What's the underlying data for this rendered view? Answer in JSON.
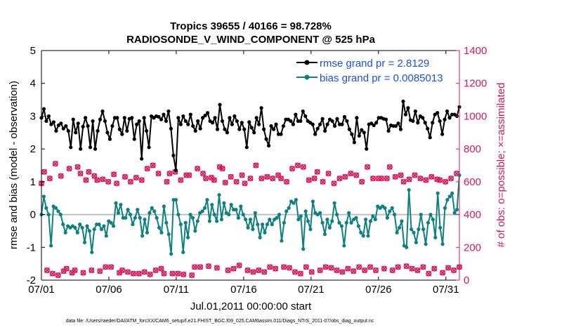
{
  "chart_data": {
    "type": "line",
    "title_line1": "Tropics 39655 / 40166 = 98.728%",
    "title_line2": "RADIOSONDE_V_WIND_COMPONENT @ 525 hPa",
    "xlabel": "Jul.01,2011 00:00:00 start",
    "ylabel_left": "rmse and bias (model - observation)",
    "ylabel_right": "# of obs: o=possible; ×=assimilated",
    "footer": "data file: /Users/raeder/DAI/ATM_forcXX/CAM6_setup/f.e21.FHIST_BGC.f09_025.CAM6assim.011/Diags_NTrS_2011-07/obs_diag_output.nc",
    "x_ticks": [
      "07/01",
      "07/06",
      "07/11",
      "07/16",
      "07/21",
      "07/26",
      "07/31"
    ],
    "x_tick_positions_days": [
      0,
      5,
      10,
      15,
      20,
      25,
      30
    ],
    "xlim_days": [
      0,
      31
    ],
    "ylim_left": [
      -2,
      5
    ],
    "y_ticks_left": [
      "-2",
      "-1",
      "0",
      "1",
      "2",
      "3",
      "4",
      "5"
    ],
    "ylim_right": [
      0,
      1400
    ],
    "y_ticks_right": [
      "0",
      "200",
      "400",
      "600",
      "800",
      "1000",
      "1200",
      "1400"
    ],
    "zero_line": 0,
    "colors": {
      "rmse": "#000000",
      "bias": "#0f8080",
      "obs": "#d6185a",
      "legend_text": "#1f4fe0",
      "zero_line": "#bfbfbf"
    },
    "series": [
      {
        "name": "rmse grand pr = 2.8129",
        "values": [
          2.95,
          3.22,
          2.85,
          3.0,
          2.75,
          2.82,
          2.55,
          2.72,
          2.78,
          2.62,
          2.7,
          2.55,
          2.05,
          2.9,
          2.5,
          2.78,
          2.0,
          2.68,
          2.95,
          2.7,
          2.05,
          2.85,
          2.0,
          2.55,
          2.9,
          3.15,
          2.85,
          2.5,
          2.3,
          2.7,
          2.95,
          2.95,
          2.6,
          2.45,
          2.95,
          2.55,
          2.92,
          2.95,
          2.3,
          2.75,
          2.85,
          1.7,
          2.95,
          2.55,
          2.05,
          3.0,
          2.95,
          3.0,
          2.98,
          2.9,
          3.05,
          2.85,
          3.15,
          2.62,
          1.8,
          1.35,
          2.95,
          2.75,
          3.0,
          2.85,
          2.75,
          3.05,
          2.7,
          2.55,
          2.85,
          2.62,
          2.95,
          3.02,
          3.1,
          2.85,
          2.8,
          2.95,
          2.6,
          3.35,
          2.85,
          2.6,
          2.5,
          2.95,
          2.75,
          3.0,
          2.85,
          2.6,
          2.8,
          2.6,
          2.05,
          2.82,
          2.65,
          2.5,
          2.95,
          2.75,
          3.25,
          2.6,
          2.3,
          2.1,
          2.7,
          2.6,
          2.75,
          2.45,
          2.45,
          2.7,
          2.9,
          2.9,
          2.85,
          2.75,
          3.05,
          2.85,
          2.85,
          3.15,
          3.0,
          2.85,
          2.8,
          2.75,
          2.45,
          2.62,
          2.75,
          2.92,
          2.55,
          2.75,
          2.9,
          2.85,
          2.7,
          2.92,
          2.75,
          2.75,
          2.98,
          2.85,
          2.6,
          2.45,
          2.2,
          2.95,
          2.4,
          2.58,
          2.5,
          2.0,
          2.75,
          2.78,
          2.72,
          2.8,
          2.95,
          2.95,
          2.92,
          2.9,
          2.55,
          2.72,
          2.7,
          2.7,
          2.78,
          2.6,
          3.45,
          3.05,
          3.25,
          2.88,
          2.85,
          3.15,
          2.8,
          3.0,
          2.95,
          2.8,
          2.62,
          2.35,
          2.8,
          3.05,
          3.1,
          2.85,
          2.45,
          2.9,
          3.15,
          2.95,
          3.05,
          3.05,
          3.0,
          3.28
        ]
      },
      {
        "name": "bias grand pr = 0.0085013",
        "values": [
          0.0,
          0.55,
          0.2,
          0.0,
          -0.95,
          0.25,
          0.2,
          0.1,
          0.0,
          -0.3,
          -0.55,
          -0.35,
          -0.4,
          -0.35,
          -0.4,
          -0.55,
          -0.3,
          -0.4,
          -0.85,
          -0.35,
          -0.5,
          -1.15,
          -0.45,
          -0.3,
          -0.3,
          -0.45,
          -0.35,
          -0.65,
          -0.2,
          -0.25,
          -0.35,
          0.35,
          0.05,
          0.3,
          -0.1,
          -0.1,
          0.15,
          0.0,
          -0.3,
          -0.1,
          0.15,
          -0.1,
          -0.65,
          -0.15,
          -0.55,
          0.05,
          0.2,
          0.1,
          -0.1,
          -0.4,
          -0.55,
          0.25,
          -0.25,
          -0.6,
          -1.2,
          0.45,
          0.45,
          0.0,
          -0.3,
          -1.15,
          -0.25,
          -0.7,
          0.0,
          -0.1,
          -0.5,
          -0.2,
          0.05,
          0.1,
          0.2,
          0.45,
          -0.2,
          0.3,
          0.0,
          -0.2,
          0.6,
          -0.15,
          0.35,
          0.05,
          0.0,
          0.3,
          0.15,
          0.15,
          -0.1,
          0.25,
          0.0,
          -0.15,
          -0.4,
          -0.15,
          -0.45,
          0.05,
          -0.3,
          -0.7,
          -0.3,
          -0.55,
          -0.3,
          -0.15,
          -0.3,
          -0.15,
          -0.1,
          0.0,
          -0.8,
          -0.25,
          0.1,
          0.2,
          0.4,
          0.35,
          0.45,
          -0.15,
          -0.05,
          -1.05,
          0.1,
          -0.2,
          -0.45,
          0.4,
          0.05,
          0.0,
          0.05,
          -0.25,
          -0.6,
          -0.15,
          -0.4,
          -0.2,
          0.35,
          0.0,
          -0.25,
          -0.35,
          -0.95,
          -0.25,
          0.05,
          -0.25,
          -0.15,
          -0.1,
          -0.35,
          -0.55,
          -0.65,
          -0.15,
          -0.65,
          -0.2,
          -0.05,
          -0.15,
          0.25,
          0.2,
          0.25,
          0.2,
          -0.1,
          0.1,
          0.2,
          0.0,
          -0.55,
          -0.4,
          -0.2,
          -0.95,
          -1.0,
          0.75,
          -0.45,
          -0.55,
          -0.85,
          -0.45,
          0.0,
          -0.45,
          -0.9,
          -0.25,
          0.0,
          -0.15,
          -0.7,
          0.65,
          -0.4,
          -0.9,
          0.2,
          0.45,
          0.55,
          0.65,
          0.05,
          0.15,
          1.2
        ]
      },
      {
        "name": "obs possible",
        "values": [
          590,
          660,
          60,
          620,
          40,
          710,
          30,
          635,
          55,
          70,
          680,
          45,
          60,
          690,
          650,
          45,
          610,
          660,
          60,
          635,
          610,
          55,
          615,
          80,
          600,
          80,
          645,
          590,
          45,
          60,
          630,
          50,
          600,
          40,
          625,
          40,
          610,
          50,
          680,
          35,
          700,
          60,
          650,
          70,
          40,
          600,
          650,
          40,
          660,
          40,
          610,
          35,
          640,
          640,
          30,
          80,
          680,
          80,
          650,
          620,
          85,
          625,
          610,
          75,
          690,
          680,
          595,
          60,
          630,
          70,
          600,
          90,
          640,
          590,
          60,
          620,
          50,
          700,
          60,
          620,
          50,
          630,
          80,
          620,
          70,
          640,
          620,
          80,
          600,
          75,
          680,
          50,
          700,
          40,
          690,
          80,
          610,
          50,
          620,
          660,
          60,
          600,
          80,
          650,
          75,
          590,
          60,
          620,
          50,
          630,
          70,
          650,
          55,
          640,
          80,
          600,
          60,
          690,
          80,
          620,
          60,
          620,
          620,
          70,
          620,
          690,
          60,
          630,
          80,
          640,
          600,
          85,
          615,
          70,
          640,
          60,
          620,
          80,
          610,
          40,
          630,
          70,
          615,
          610,
          45,
          600,
          75,
          620,
          60,
          650,
          80
        ]
      }
    ]
  }
}
